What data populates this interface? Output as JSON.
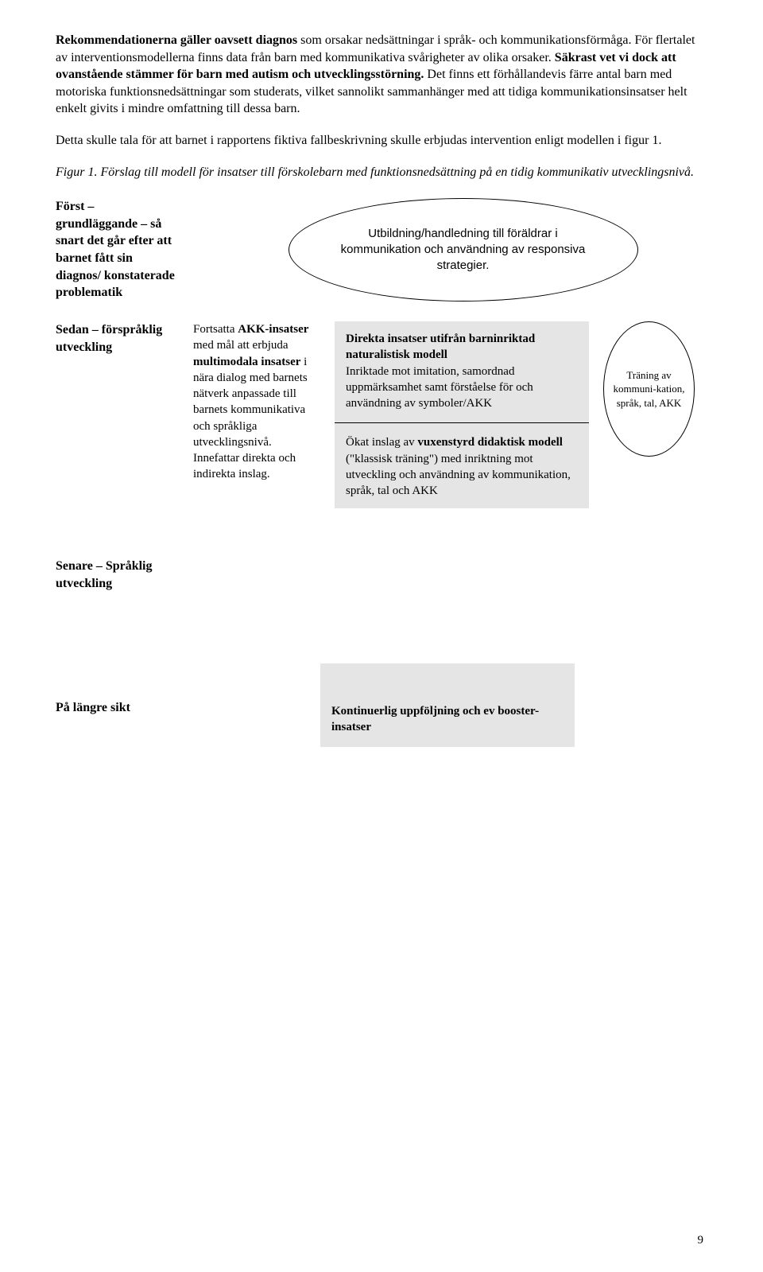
{
  "p1_lead": "Rekommendationerna gäller oavsett diagnos",
  "p1_rest": " som orsakar nedsättningar i språk- och kommunikationsförmåga. För flertalet av interventionsmodellerna finns data från barn med kommunikativa svårigheter av olika orsaker. ",
  "p1_bold2": "Säkrast vet vi dock att ovanstående stämmer för barn med autism och utvecklingsstörning.",
  "p1_rest2": " Det finns ett förhållandevis färre antal barn med motoriska funktionsnedsättningar som studerats, vilket sannolikt sammanhänger med att tidiga kommunikationsinsatser helt enkelt givits i mindre omfattning till dessa barn.",
  "p2": "Detta skulle tala för att barnet i rapportens fiktiva fallbeskrivning skulle erbjudas intervention enligt modellen i figur 1.",
  "p3": "Figur 1. Förslag till modell för insatser till förskolebarn med funktionsnedsättning på en tidig kommunikativ utvecklingsnivå.",
  "stage1_label": "Först – grundläggande – så snart det går efter att barnet fått sin diagnos/ konstaterade problematik",
  "stage2_label": "Sedan – förspråklig utveckling",
  "stage3_label": "Senare – Språklig utveckling",
  "stage4_label": "På längre sikt",
  "ellipse1": "Utbildning/handledning till föräldrar i kommunikation och användning av responsiva strategier.",
  "akk_pre1": "Fortsatta ",
  "akk_b1": "AKK-insatser",
  "akk_mid1": " med mål att erbjuda ",
  "akk_b2": "multimodala insatser",
  "akk_rest": " i nära dialog med barnets nätverk anpassade till barnets kommunikativa och språkliga utvecklingsnivå. Innefattar direkta och indirekta inslag.",
  "gray_top_b": "Direkta insatser utifrån barninriktad naturalistisk modell",
  "gray_top_rest": "Inriktade mot imitation, samordnad uppmärksamhet samt förståelse för och användning av symboler/AKK",
  "gray_bot_pre": "Ökat inslag av ",
  "gray_bot_b": "vuxenstyrd didaktisk modell",
  "gray_bot_rest": " (\"klassisk träning\") med inriktning mot utveckling och användning av kommunikation, språk, tal och AKK",
  "ellipse2": "Träning av kommuni-kation, språk, tal, AKK",
  "follow": "Kontinuerlig uppföljning och ev booster-insatser",
  "page": "9"
}
